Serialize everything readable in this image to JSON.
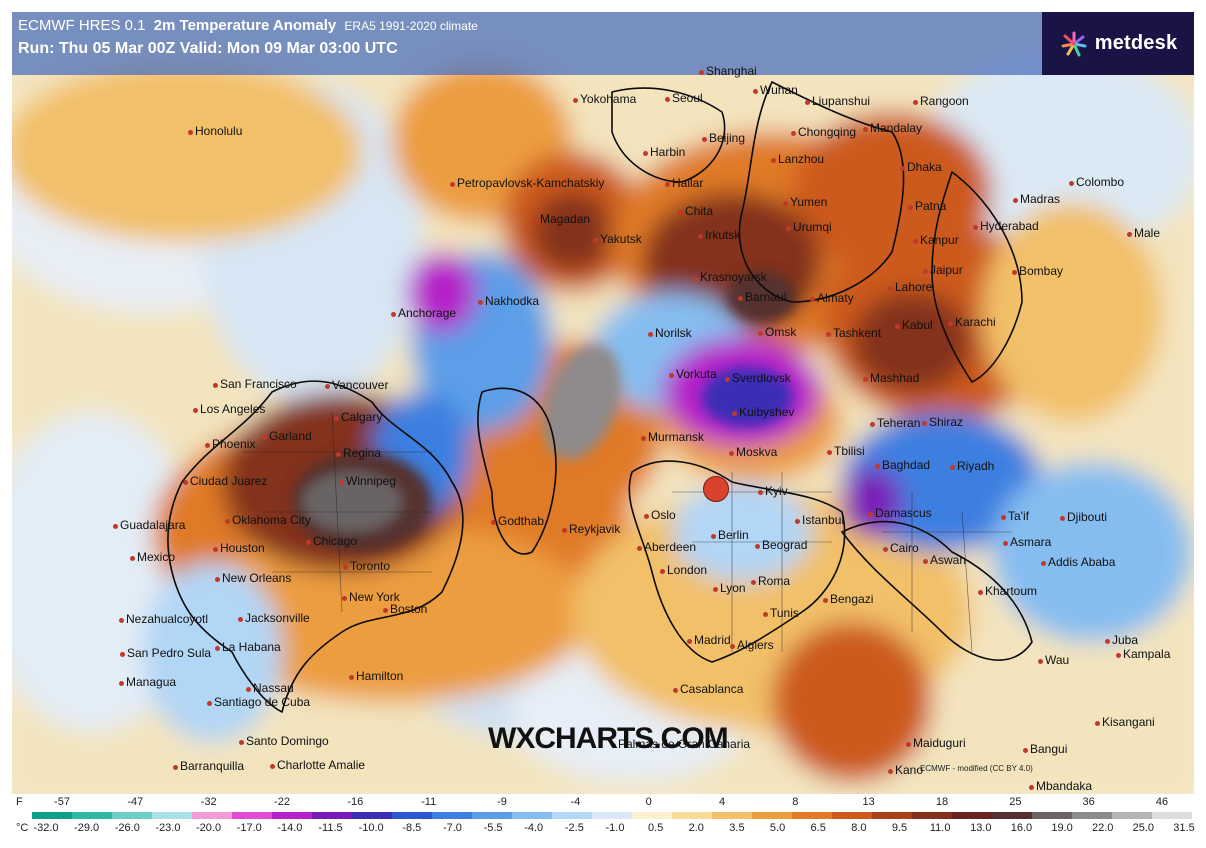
{
  "header": {
    "model": "ECMWF HRES 0.1",
    "parameter": "2m Temperature Anomaly",
    "climate": "ERA5 1991-2020 climate",
    "run_line": "Run: Thu 05 Mar 00Z Valid: Mon 09 Mar 03:00 UTC"
  },
  "brand": {
    "name": "metdesk"
  },
  "watermark": "WXCHARTS.COM",
  "credit": "ECMWF - modified (CC BY 4.0)",
  "legend": {
    "f_unit": "F",
    "f_ticks": [
      "-57",
      "-47",
      "-32",
      "-22",
      "-16",
      "-11",
      "-9",
      "-4",
      "0",
      "4",
      "8",
      "13",
      "18",
      "25",
      "36",
      "46"
    ],
    "c_unit": "°C",
    "c_ticks": [
      "-32.0",
      "-29.0",
      "-26.0",
      "-23.0",
      "-20.0",
      "-17.0",
      "-14.0",
      "-11.5",
      "-10.0",
      "-8.5",
      "-7.0",
      "-5.5",
      "-4.0",
      "-2.5",
      "-1.0",
      "0.5",
      "2.0",
      "3.5",
      "5.0",
      "6.5",
      "8.0",
      "9.5",
      "11.0",
      "13.0",
      "16.0",
      "19.0",
      "22.0",
      "25.0",
      "31.5"
    ],
    "colors": [
      "#0f9e8a",
      "#2fb7a0",
      "#6ecfc5",
      "#a8e0e6",
      "#f59ad8",
      "#e24bd4",
      "#b521c9",
      "#7a1bb8",
      "#3a2fb5",
      "#2b57cf",
      "#3c7fe0",
      "#5b9ee8",
      "#86bdf0",
      "#b2d6f5",
      "#dbe9f7",
      "#fbf1cf",
      "#f6dc98",
      "#f2c069",
      "#ec9d3f",
      "#e07a26",
      "#cc5a1a",
      "#a8401a",
      "#83301c",
      "#66241e",
      "#55302e",
      "#6b6465",
      "#8e8a8b",
      "#b8b3b4",
      "#e1dcdc"
    ]
  },
  "cities": [
    "Honolulu",
    "Yokohama",
    "Seoul",
    "Wuhan",
    "Liupanshui",
    "Rangoon",
    "Shanghai",
    "Beijing",
    "Chongqing",
    "Mandalay",
    "Harbin",
    "Lanzhou",
    "Dhaka",
    "Petropavlovsk-Kamchatskiy",
    "Hailar",
    "Chita",
    "Yumen",
    "Colombo",
    "Madras",
    "Magadan",
    "Yakutsk",
    "Irkutsk",
    "Patna",
    "Hyderabad",
    "Male",
    "Kanpur",
    "Urumqi",
    "Jaipur",
    "Bombay",
    "Krasnoyarsk",
    "Barnaul",
    "Almaty",
    "Lahore",
    "Karachi",
    "Anchorage",
    "Nakhodka",
    "Omsk",
    "Tashkent",
    "Kabul",
    "Norilsk",
    "San Francisco",
    "Vancouver",
    "Vorkuta",
    "Sverdlovsk",
    "Mashhad",
    "Los Angeles",
    "Calgary",
    "Kuibyshev",
    "Teheran",
    "Shiraz",
    "Phoenix",
    "Garland",
    "Regina",
    "Murmansk",
    "Moskva",
    "Tbilisi",
    "Baghdad",
    "Riyadh",
    "Ciudad Juarez",
    "Winnipeg",
    "Kyiv",
    "Ta'if",
    "Djibouti",
    "Guadalajara",
    "Oklahoma City",
    "Godthab",
    "Reykjavik",
    "Oslo",
    "Damascus",
    "Istanbul",
    "Mexico",
    "Chicago",
    "Aberdeen",
    "Berlin",
    "Beograd",
    "Cairo",
    "Asmara",
    "Addis Ababa",
    "Houston",
    "Toronto",
    "Aswan",
    "New Orleans",
    "London",
    "Roma",
    "Khartoum",
    "New York",
    "Bengazi",
    "Lyon",
    "Tunis",
    "Nezahualcoyotl",
    "Jacksonville",
    "Boston",
    "Madrid",
    "Algiers",
    "Juba",
    "Kampala",
    "San Pedro Sula",
    "La Habana",
    "Wau",
    "Managua",
    "Nassau",
    "Hamilton",
    "Casablanca",
    "Santiago de Cuba",
    "Kisangani",
    "Santo Domingo",
    "Palmas de Gran Canaria",
    "Maiduguri",
    "Bangui",
    "Barranquilla",
    "Charlotte Amalie",
    "Kano",
    "Mbandaka"
  ]
}
